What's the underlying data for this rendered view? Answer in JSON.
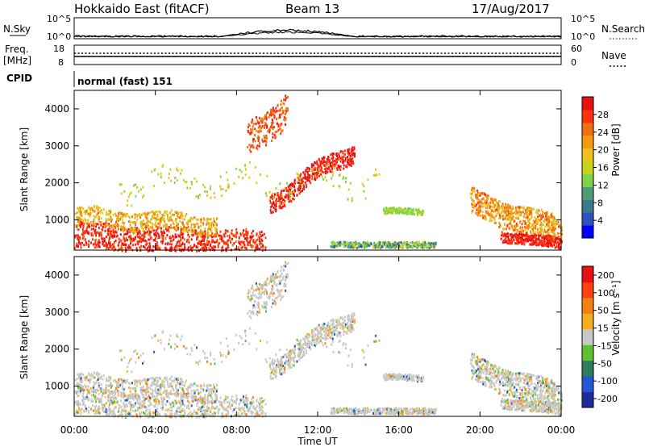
{
  "header": {
    "title": "Hokkaido East (fitACF)",
    "beam": "Beam 13",
    "date": "17/Aug/2017"
  },
  "noise_panel": {
    "left_label": "N.Sky",
    "right_label": "N.Search",
    "left_ticks": [
      "10^5",
      "10^0"
    ],
    "right_ticks": [
      "10^5",
      "10^0"
    ]
  },
  "freq_panel": {
    "left_label_1": "Freq.",
    "left_label_2": "[MHz]",
    "right_label": "Nave",
    "left_ticks": [
      "18",
      "8"
    ],
    "right_ticks": [
      "60",
      "0"
    ]
  },
  "cpid_panel": {
    "label": "CPID",
    "value": "normal (fast) 151"
  },
  "chart_data": [
    {
      "type": "heatmap",
      "quantity": "Power",
      "ylabel": "Slant Range [km]",
      "xlabel": "Time UT",
      "x_ticks": [
        "00:00",
        "04:00",
        "08:00",
        "12:00",
        "16:00",
        "20:00",
        "00:00"
      ],
      "x_range_hours": [
        0,
        24
      ],
      "y_range_km": [
        180,
        4500
      ],
      "y_ticks": [
        1000,
        2000,
        3000,
        4000
      ],
      "colorbar": {
        "label": "Power [dB]",
        "range": [
          0,
          32
        ],
        "tick_labels": [
          "4",
          "8",
          "12",
          "16",
          "20",
          "24",
          "28"
        ],
        "colors": [
          "#0000ff",
          "#2a52be",
          "#3a7a8c",
          "#4e9c7a",
          "#7fd24a",
          "#c8d21e",
          "#f0c020",
          "#f59a10",
          "#f07010",
          "#ff3010",
          "#e81010"
        ]
      }
    },
    {
      "type": "heatmap",
      "quantity": "Velocity",
      "ylabel": "Slant Range [km]",
      "xlabel": "Time UT",
      "x_ticks": [
        "00:00",
        "04:00",
        "08:00",
        "12:00",
        "16:00",
        "20:00",
        "00:00"
      ],
      "x_range_hours": [
        0,
        24
      ],
      "y_range_km": [
        180,
        4500
      ],
      "y_ticks": [
        1000,
        2000,
        3000,
        4000
      ],
      "colorbar": {
        "label": "Velocity [m s⁻¹]",
        "tick_labels": [
          "200",
          "100",
          "50",
          "15",
          "-15",
          "-50",
          "-100",
          "-200"
        ],
        "colors": [
          "#1e2a9c",
          "#2456d8",
          "#2e7d5a",
          "#5fbf30",
          "#c8c8c8",
          "#f5b020",
          "#f58010",
          "#ff4010",
          "#e81010"
        ]
      }
    }
  ]
}
